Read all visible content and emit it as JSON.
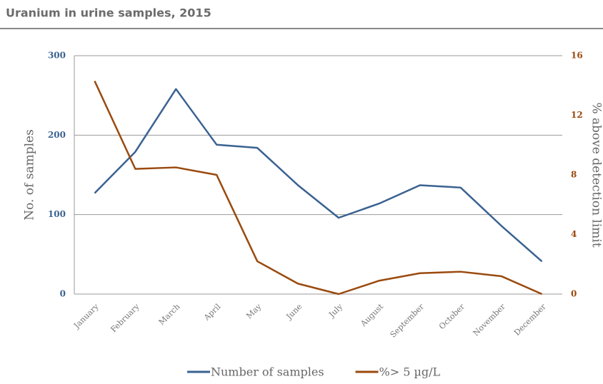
{
  "chart_data": {
    "type": "line",
    "title": "Uranium in urine samples, 2015",
    "y_label": "No. of samples",
    "y2_label": "% above detection limit",
    "categories": [
      "January",
      "February",
      "March",
      "April",
      "May",
      "June",
      "July",
      "August",
      "September",
      "October",
      "November",
      "December"
    ],
    "series": [
      {
        "name": "Number of samples",
        "color": "#3a6291",
        "values": [
          127,
          179,
          258,
          188,
          184,
          137,
          96,
          114,
          137,
          134,
          86,
          41
        ]
      },
      {
        "name": "%> 5 µg/L",
        "color": "#9a4a0e",
        "axis": "y2",
        "values": [
          14.3,
          8.4,
          8.5,
          8.0,
          2.2,
          0.7,
          0,
          0.9,
          1.4,
          1.5,
          1.2,
          0
        ]
      }
    ],
    "ylim": [
      0,
      300
    ],
    "yticks": [
      0,
      100,
      200,
      300
    ],
    "y2lim": [
      0,
      16
    ],
    "y2ticks": [
      0,
      4,
      8,
      12,
      16
    ],
    "grid": true
  }
}
